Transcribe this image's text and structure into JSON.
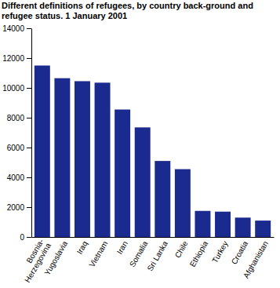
{
  "chart_data": {
    "type": "bar",
    "title": "Different definitions of refugees, by country back-ground and refugee status. 1 January 2001",
    "categories": [
      "Bosnia-Herzegovina",
      "Yugoslavia",
      "Iraq",
      "Vietnam",
      "Iran",
      "Somalia",
      "Sri Lanka",
      "Chile",
      "Ethiopia",
      "Turkey",
      "Croatia",
      "Afghanistan"
    ],
    "values": [
      11500,
      10650,
      10450,
      10350,
      8550,
      7350,
      5100,
      4550,
      1750,
      1700,
      1300,
      1100
    ],
    "color": "#1b2a8e",
    "ylim": [
      0,
      14000
    ],
    "yticks": [
      0,
      2000,
      4000,
      6000,
      8000,
      10000,
      12000,
      14000
    ],
    "grid": false
  }
}
